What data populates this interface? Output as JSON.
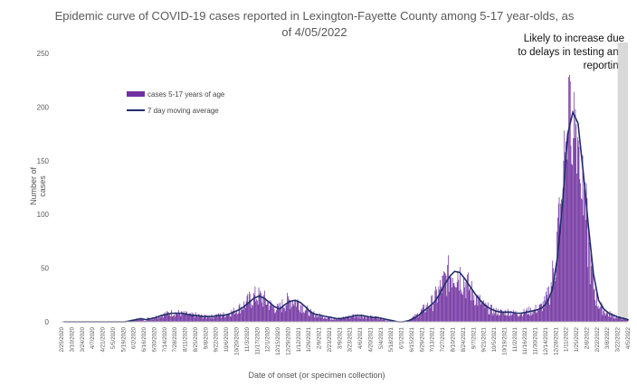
{
  "chart_data": {
    "type": "bar",
    "title": "Epidemic curve of COVID-19 cases reported in Lexington-Fayette County among 5-17 year-olds, as of 4/05/2022",
    "xlabel": "Date of onset (or specimen collection)",
    "ylabel": "Number of cases",
    "ylim": [
      0,
      250
    ],
    "yticks": [
      0,
      50,
      100,
      150,
      200,
      250
    ],
    "grid": false,
    "legend_position": "top-left",
    "annotation": "Likely to increase due to delays in testing and reporting",
    "x_start": "2/25/2020",
    "x_end": "4/5/2022",
    "shaded_region": [
      "3/22/2022",
      "4/5/2022"
    ],
    "colors": {
      "bars": "#7030a0",
      "average": "#1f2d6b",
      "shade": "#d9d9d9"
    },
    "x_tick_labels": [
      "2/25/2020",
      "3/10/2020",
      "3/24/2020",
      "4/7/2020",
      "4/21/2020",
      "5/5/2020",
      "5/19/2020",
      "6/2/2020",
      "6/16/2020",
      "6/30/2020",
      "7/14/2020",
      "7/28/2020",
      "8/11/2020",
      "8/25/2020",
      "9/8/2020",
      "9/22/2020",
      "10/6/2020",
      "10/20/2020",
      "11/3/2020",
      "11/17/2020",
      "12/1/2020",
      "12/15/2020",
      "12/29/2020",
      "1/12/2021",
      "1/26/2021",
      "2/9/2021",
      "2/23/2021",
      "3/9/2021",
      "3/23/2021",
      "4/6/2021",
      "4/20/2021",
      "5/4/2021",
      "5/18/2021",
      "6/1/2021",
      "6/15/2021",
      "6/29/2021",
      "7/13/2021",
      "7/27/2021",
      "8/10/2021",
      "8/24/2021",
      "9/7/2021",
      "9/21/2021",
      "10/5/2021",
      "10/19/2021",
      "11/2/2021",
      "11/16/2021",
      "11/30/2021",
      "12/14/2021",
      "12/28/2021",
      "1/11/2022",
      "1/25/2022",
      "2/8/2022",
      "2/22/2022",
      "3/8/2022",
      "3/22/2022",
      "4/5/2022"
    ],
    "series": [
      {
        "name": "cases 5-17 years of age",
        "type": "bar",
        "values_weekly": [
          0,
          0,
          0,
          0,
          0,
          0,
          0,
          0,
          0,
          0,
          0,
          0,
          0,
          1,
          2,
          3,
          2,
          3,
          4,
          6,
          7,
          8,
          8,
          8,
          7,
          6,
          6,
          5,
          5,
          5,
          6,
          6,
          7,
          9,
          11,
          14,
          18,
          22,
          24,
          22,
          18,
          14,
          12,
          16,
          19,
          20,
          18,
          14,
          9,
          7,
          6,
          5,
          4,
          3,
          3,
          4,
          5,
          6,
          6,
          5,
          4,
          4,
          3,
          2,
          1,
          0,
          0,
          1,
          3,
          6,
          10,
          14,
          18,
          25,
          34,
          42,
          47,
          46,
          40,
          33,
          26,
          20,
          15,
          12,
          10,
          9,
          9,
          9,
          8,
          8,
          9,
          10,
          11,
          13,
          18,
          30,
          60,
          110,
          175,
          195,
          185,
          140,
          90,
          45,
          20,
          12,
          8,
          6,
          4,
          3,
          2,
          2,
          1
        ]
      },
      {
        "name": "7 day moving average",
        "type": "line",
        "values_weekly": [
          0,
          0,
          0,
          0,
          0,
          0,
          0,
          0,
          0,
          0,
          0,
          0,
          0,
          1,
          2,
          3,
          2,
          3,
          4,
          6,
          7,
          8,
          8,
          8,
          7,
          6,
          6,
          5,
          5,
          5,
          6,
          6,
          7,
          9,
          11,
          14,
          18,
          22,
          24,
          22,
          18,
          14,
          12,
          16,
          19,
          20,
          18,
          14,
          9,
          7,
          6,
          5,
          4,
          3,
          3,
          4,
          5,
          6,
          6,
          5,
          4,
          4,
          3,
          2,
          1,
          0,
          0,
          1,
          3,
          6,
          10,
          14,
          18,
          25,
          34,
          42,
          47,
          46,
          40,
          33,
          26,
          20,
          15,
          12,
          10,
          9,
          9,
          9,
          8,
          8,
          9,
          10,
          11,
          13,
          18,
          30,
          60,
          110,
          175,
          195,
          185,
          140,
          90,
          45,
          20,
          12,
          8,
          6,
          4,
          3,
          2,
          2,
          1
        ]
      }
    ]
  }
}
